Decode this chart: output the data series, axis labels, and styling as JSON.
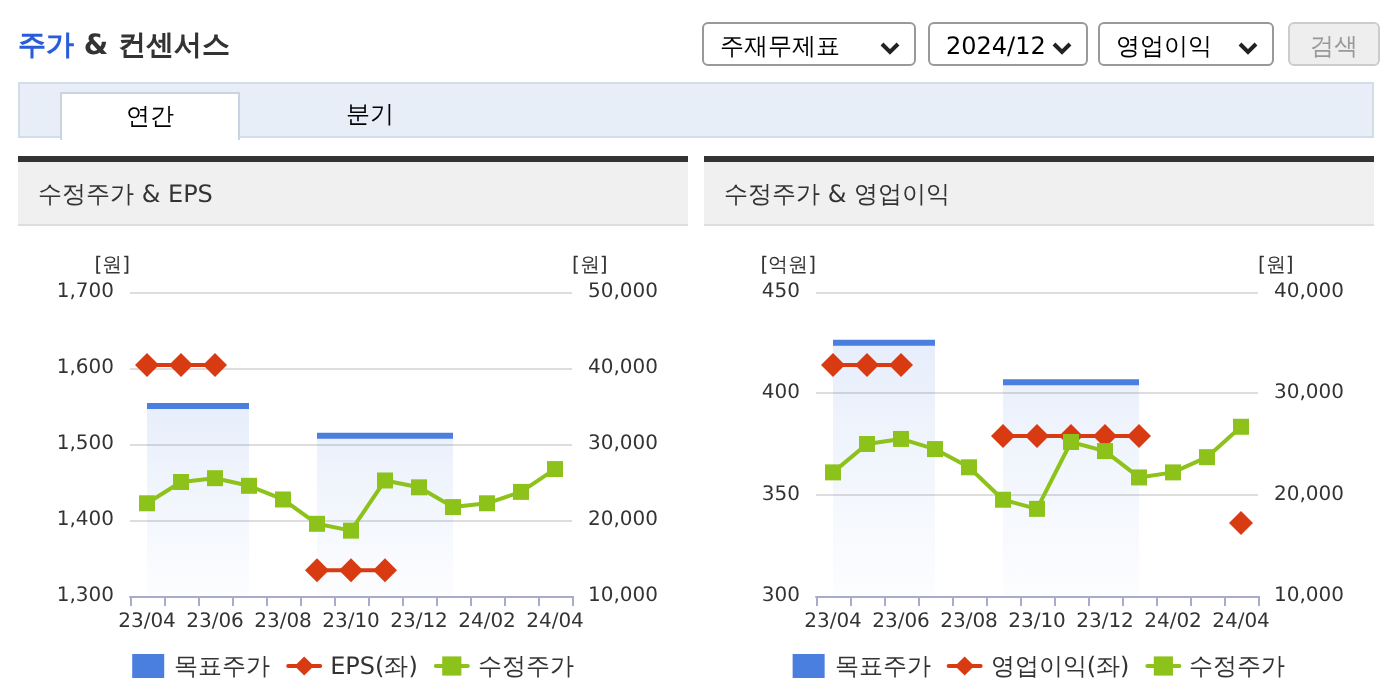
{
  "chart_data": [
    {
      "type": "other",
      "title": "주가 & 컨센서스",
      "annotations": [
        "주재무제표",
        "2024/12",
        "영업이익",
        "검색",
        "연간",
        "분기"
      ]
    },
    {
      "type": "line",
      "title": "수정주가 & EPS",
      "ylabel": "[원]",
      "y2label": "[원]",
      "categories": [
        "23/04",
        null,
        "23/06",
        null,
        "23/08",
        null,
        "23/10",
        null,
        "23/12",
        null,
        "24/02",
        null,
        "24/04"
      ],
      "ylim": [
        1300,
        1700
      ],
      "yticks": [
        {
          "value": 1300,
          "label": "1,300"
        },
        {
          "value": 1400,
          "label": "1,400"
        },
        {
          "value": 1500,
          "label": "1,500"
        },
        {
          "value": 1600,
          "label": "1,600"
        },
        {
          "value": 1700,
          "label": "1,700"
        }
      ],
      "y2lim": [
        10000,
        50000
      ],
      "y2ticks": [
        {
          "value": 10000,
          "label": "10,000"
        },
        {
          "value": 20000,
          "label": "20,000"
        },
        {
          "value": 30000,
          "label": "30,000"
        },
        {
          "value": 40000,
          "label": "40,000"
        },
        {
          "value": 50000,
          "label": "50,000"
        }
      ],
      "grid": "y",
      "legend": "bottom",
      "line_style": "solid",
      "series": [
        {
          "name": "목표주가",
          "type": "area",
          "axis": "y2",
          "marker": "none",
          "color": "#4a7fe0",
          "values": [
            35000,
            35000,
            35000,
            35000,
            null,
            31100,
            31100,
            31100,
            31100,
            31100,
            null,
            null,
            null
          ]
        },
        {
          "name": "EPS(좌)",
          "type": "line",
          "axis": "y",
          "marker": "diamond",
          "color": "#d83a12",
          "values": [
            1604,
            1604,
            1604,
            null,
            null,
            1334,
            1334,
            1334,
            null,
            null,
            null,
            null,
            null
          ]
        },
        {
          "name": "수정주가",
          "type": "line",
          "axis": "y2",
          "marker": "square",
          "color": "#8cc21a",
          "values": [
            22200,
            25000,
            25500,
            24500,
            22700,
            19500,
            18600,
            25200,
            24300,
            21700,
            22200,
            23700,
            26700
          ]
        }
      ]
    },
    {
      "type": "line",
      "title": "수정주가 & 영업이익",
      "ylabel": "[억원]",
      "y2label": "[원]",
      "categories": [
        "23/04",
        null,
        "23/06",
        null,
        "23/08",
        null,
        "23/10",
        null,
        "23/12",
        null,
        "24/02",
        null,
        "24/04"
      ],
      "ylim": [
        300,
        450
      ],
      "yticks": [
        300,
        350,
        400,
        450
      ],
      "y2lim": [
        10000,
        40000
      ],
      "y2ticks": [
        {
          "value": 10000,
          "label": "10,000"
        },
        {
          "value": 20000,
          "label": "20,000"
        },
        {
          "value": 30000,
          "label": "30,000"
        },
        {
          "value": 40000,
          "label": "40,000"
        }
      ],
      "grid": "y",
      "legend": "bottom",
      "line_style": "solid",
      "series": [
        {
          "name": "목표주가",
          "type": "area",
          "axis": "y2",
          "marker": "none",
          "color": "#4a7fe0",
          "values": [
            35000,
            35000,
            35000,
            35000,
            null,
            31100,
            31100,
            31100,
            31100,
            31100,
            null,
            null,
            null
          ]
        },
        {
          "name": "영업이익(좌)",
          "type": "line",
          "axis": "y",
          "marker": "diamond",
          "color": "#d83a12",
          "values": [
            414,
            414,
            414,
            null,
            null,
            379,
            379,
            379,
            379,
            379,
            null,
            null,
            336
          ]
        },
        {
          "name": "수정주가",
          "type": "line",
          "axis": "y2",
          "marker": "square",
          "color": "#8cc21a",
          "values": [
            22200,
            25000,
            25500,
            24500,
            22700,
            19500,
            18600,
            25200,
            24300,
            21700,
            22200,
            23700,
            26700
          ]
        }
      ]
    }
  ]
}
